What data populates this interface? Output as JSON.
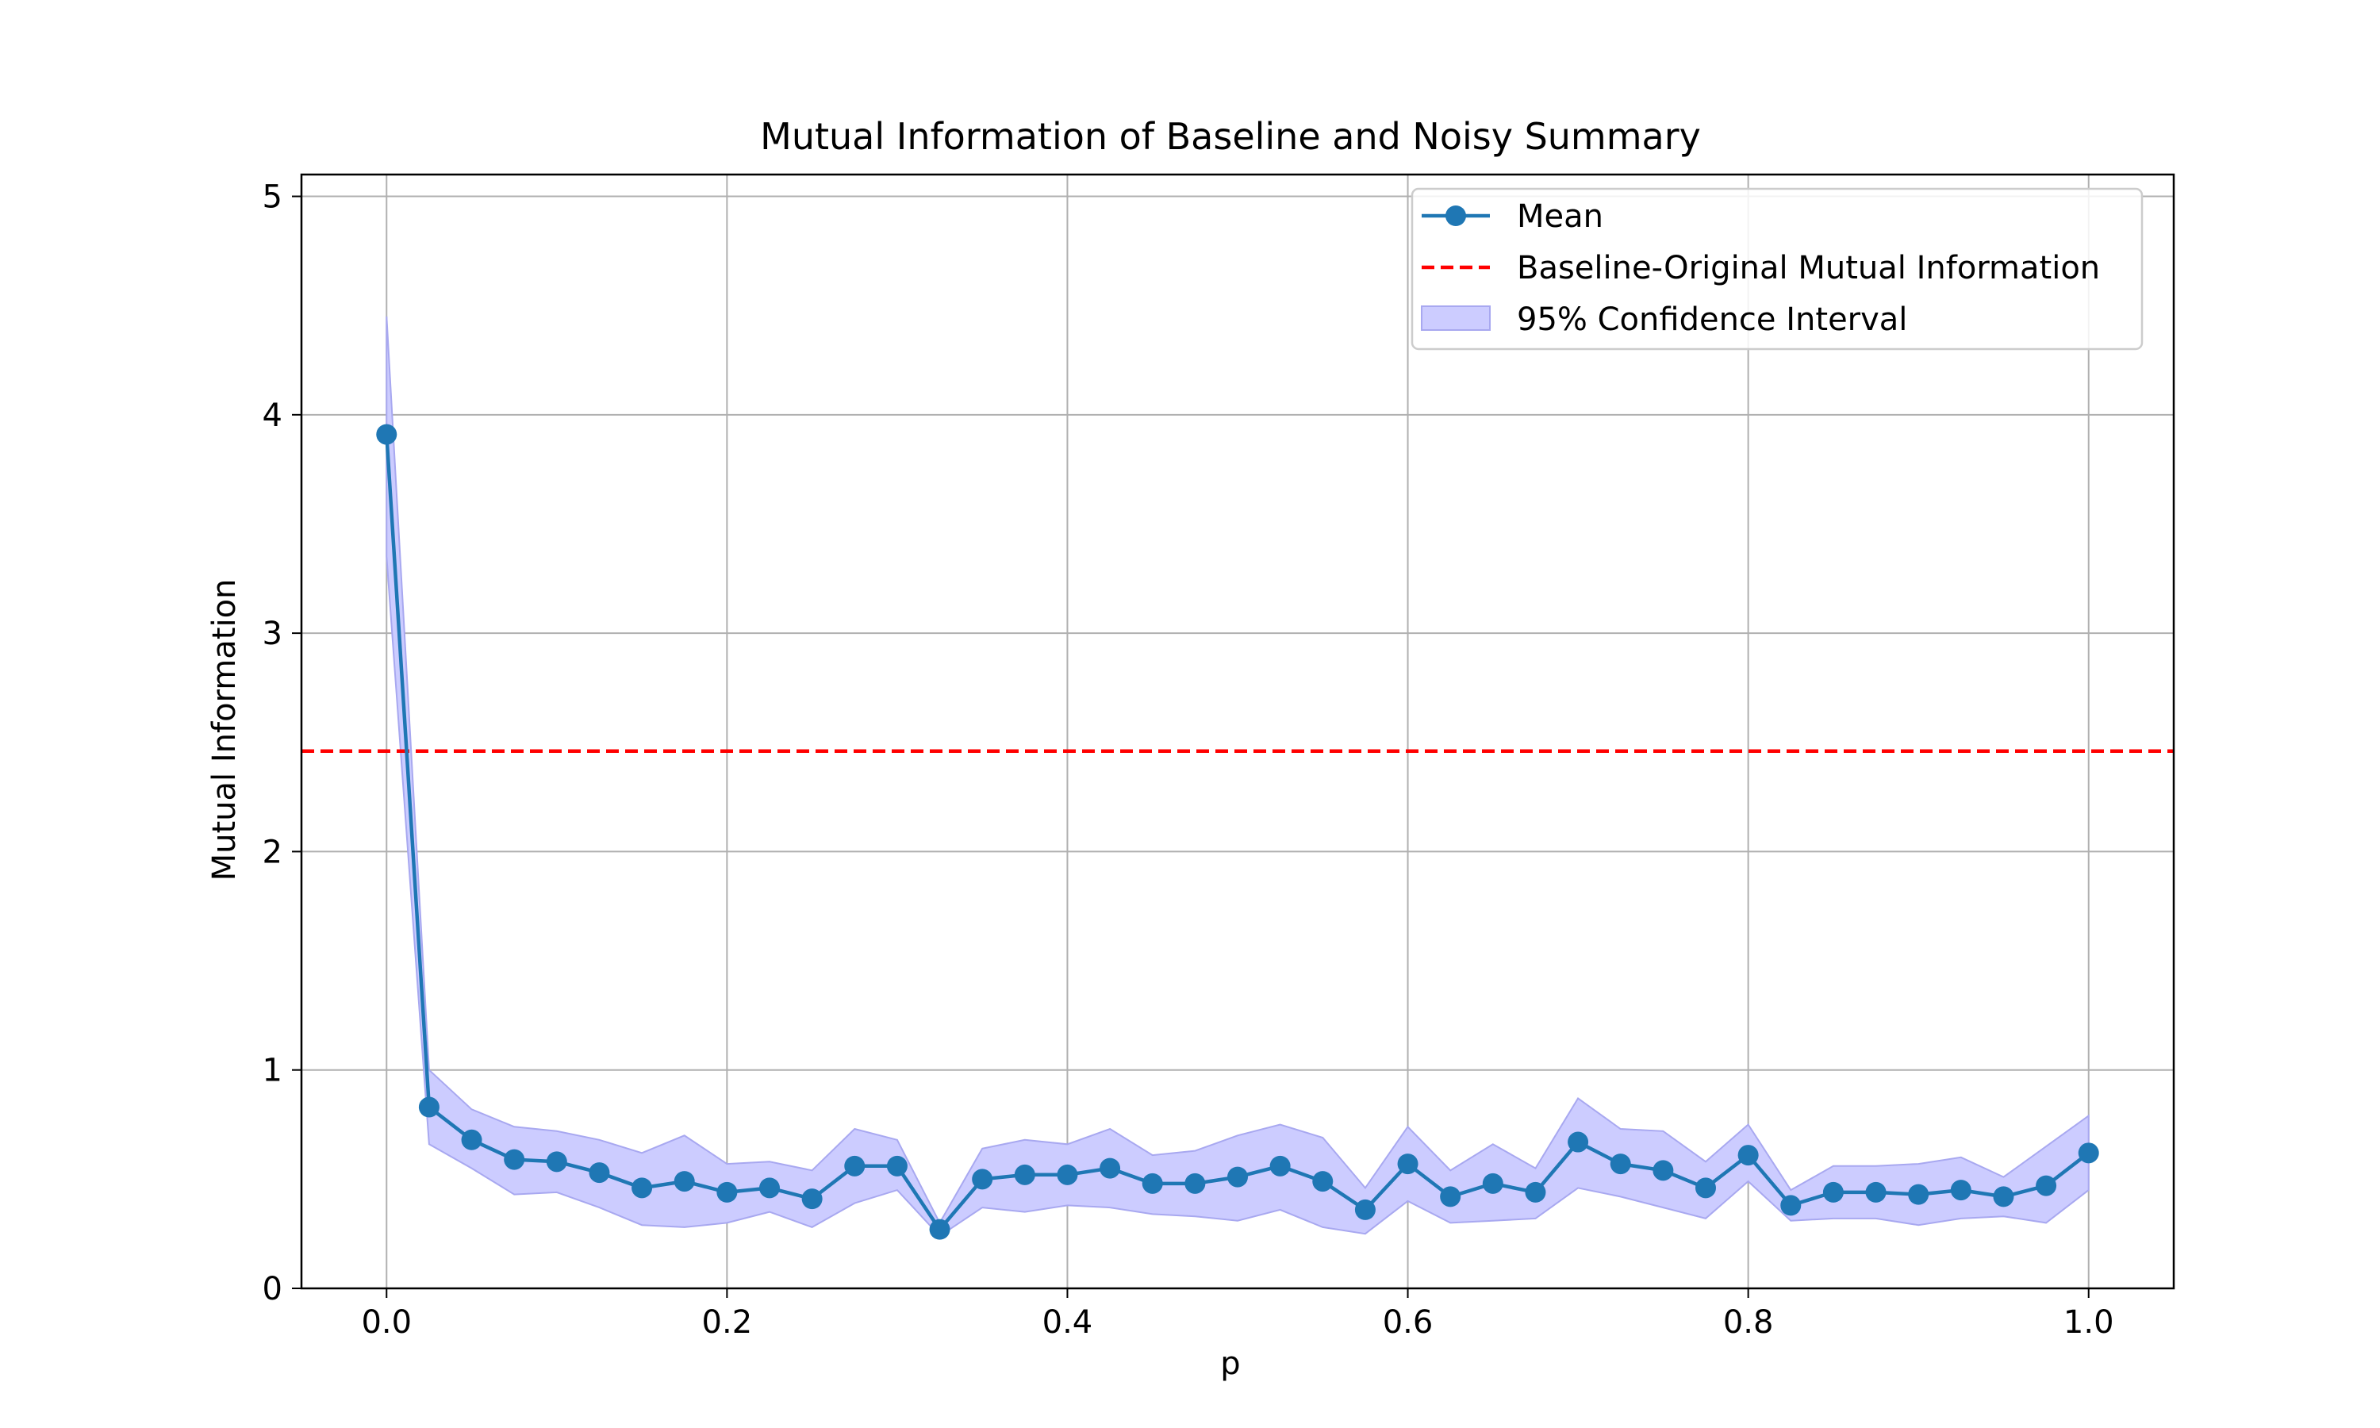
{
  "chart_data": {
    "type": "line",
    "title": "Mutual Information of Baseline and Noisy Summary",
    "xlabel": "p",
    "ylabel": "Mutual Information",
    "xlim": [
      -0.05,
      1.05
    ],
    "ylim": [
      0,
      5.1
    ],
    "xticks": [
      0.0,
      0.2,
      0.4,
      0.6,
      0.8,
      1.0
    ],
    "xtick_labels": [
      "0.0",
      "0.2",
      "0.4",
      "0.6",
      "0.8",
      "1.0"
    ],
    "yticks": [
      0,
      1,
      2,
      3,
      4,
      5
    ],
    "ytick_labels": [
      "0",
      "1",
      "2",
      "3",
      "4",
      "5"
    ],
    "grid": true,
    "legend_position": "top-right",
    "colors": {
      "mean": "#1f77b4",
      "baseline": "#ff0000",
      "ci_fill": "#ccccff",
      "ci_edge": "#a8a8f0",
      "grid": "#b0b0b0"
    },
    "x": [
      0.0,
      0.025,
      0.05,
      0.075,
      0.1,
      0.125,
      0.15,
      0.175,
      0.2,
      0.225,
      0.25,
      0.275,
      0.3,
      0.325,
      0.35,
      0.375,
      0.4,
      0.425,
      0.45,
      0.475,
      0.5,
      0.525,
      0.55,
      0.575,
      0.6,
      0.625,
      0.65,
      0.675,
      0.7,
      0.725,
      0.75,
      0.775,
      0.8,
      0.825,
      0.85,
      0.875,
      0.9,
      0.925,
      0.95,
      0.975,
      1.0
    ],
    "series": [
      {
        "name": "Mean",
        "style": "line-marker",
        "values": [
          3.91,
          0.83,
          0.68,
          0.59,
          0.58,
          0.53,
          0.46,
          0.49,
          0.44,
          0.46,
          0.41,
          0.56,
          0.56,
          0.27,
          0.5,
          0.52,
          0.52,
          0.55,
          0.48,
          0.48,
          0.51,
          0.56,
          0.49,
          0.36,
          0.57,
          0.42,
          0.48,
          0.44,
          0.67,
          0.57,
          0.54,
          0.46,
          0.61,
          0.38,
          0.44,
          0.44,
          0.43,
          0.45,
          0.42,
          0.47,
          0.62
        ]
      },
      {
        "name": "Baseline-Original Mutual Information",
        "style": "dashed-hline",
        "value": 2.46
      },
      {
        "name": "95% Confidence Interval",
        "style": "band",
        "lower": [
          3.35,
          0.66,
          0.55,
          0.43,
          0.44,
          0.37,
          0.29,
          0.28,
          0.3,
          0.35,
          0.28,
          0.39,
          0.45,
          0.24,
          0.37,
          0.35,
          0.38,
          0.37,
          0.34,
          0.33,
          0.31,
          0.36,
          0.28,
          0.25,
          0.4,
          0.3,
          0.31,
          0.32,
          0.46,
          0.42,
          0.37,
          0.32,
          0.49,
          0.31,
          0.32,
          0.32,
          0.29,
          0.32,
          0.33,
          0.3,
          0.45
        ],
        "upper": [
          4.45,
          1.0,
          0.82,
          0.74,
          0.72,
          0.68,
          0.62,
          0.7,
          0.57,
          0.58,
          0.54,
          0.73,
          0.68,
          0.3,
          0.64,
          0.68,
          0.66,
          0.73,
          0.61,
          0.63,
          0.7,
          0.75,
          0.69,
          0.46,
          0.74,
          0.54,
          0.66,
          0.55,
          0.87,
          0.73,
          0.72,
          0.58,
          0.75,
          0.45,
          0.56,
          0.56,
          0.57,
          0.6,
          0.51,
          0.65,
          0.79
        ]
      }
    ],
    "legend": [
      "Mean",
      "Baseline-Original Mutual Information",
      "95% Confidence Interval"
    ]
  }
}
